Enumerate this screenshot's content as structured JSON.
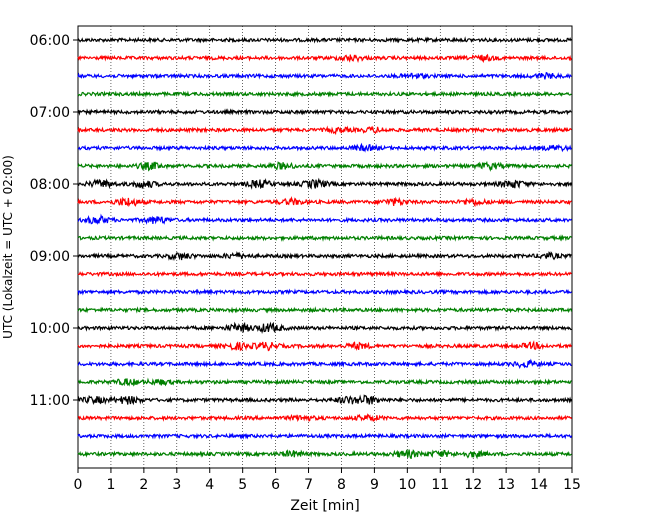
{
  "chart_data": {
    "type": "line",
    "title": "",
    "xlabel": "Zeit  [min]",
    "ylabel": "UTC (Lokalzeit = UTC + 02:00)",
    "xlim": [
      0,
      15
    ],
    "x_ticks": [
      "0",
      "1",
      "2",
      "3",
      "4",
      "5",
      "6",
      "7",
      "8",
      "9",
      "10",
      "11",
      "12",
      "13",
      "14",
      "15"
    ],
    "y_ticks": [
      "06:00",
      "07:00",
      "08:00",
      "09:00",
      "10:00",
      "11:00"
    ],
    "grid": "vertical dotted at each minute",
    "legend": "none",
    "trace_interval_minutes": 15,
    "trace_colors": [
      "#000000",
      "#ff0000",
      "#0000ff",
      "#008000"
    ],
    "traces": [
      {
        "start": "06:00",
        "color": "#000000",
        "events": []
      },
      {
        "start": "06:15",
        "color": "#ff0000",
        "events": [
          [
            8.3,
            1.6
          ],
          [
            12.3,
            1.4
          ]
        ]
      },
      {
        "start": "06:30",
        "color": "#0000ff",
        "events": [
          [
            10.2,
            1.3
          ],
          [
            14.2,
            1.3
          ]
        ]
      },
      {
        "start": "06:45",
        "color": "#008000",
        "events": []
      },
      {
        "start": "07:00",
        "color": "#000000",
        "events": []
      },
      {
        "start": "07:15",
        "color": "#ff0000",
        "events": [
          [
            7.9,
            1.3
          ],
          [
            9.0,
            1.3
          ]
        ]
      },
      {
        "start": "07:30",
        "color": "#0000ff",
        "events": [
          [
            8.7,
            1.5
          ],
          [
            14.5,
            1.3
          ]
        ]
      },
      {
        "start": "07:45",
        "color": "#008000",
        "events": [
          [
            2.2,
            2.0
          ],
          [
            6.2,
            1.8
          ],
          [
            12.5,
            1.8
          ]
        ]
      },
      {
        "start": "08:00",
        "color": "#000000",
        "events": [
          [
            0.7,
            2.2
          ],
          [
            2.0,
            2.0
          ],
          [
            5.5,
            2.2
          ],
          [
            7.2,
            2.4
          ],
          [
            13.2,
            2.2
          ]
        ]
      },
      {
        "start": "08:15",
        "color": "#ff0000",
        "events": [
          [
            1.5,
            2.4
          ],
          [
            6.5,
            1.6
          ],
          [
            9.6,
            1.8
          ],
          [
            12.0,
            1.6
          ]
        ]
      },
      {
        "start": "08:30",
        "color": "#0000ff",
        "events": [
          [
            0.6,
            2.2
          ],
          [
            2.4,
            2.0
          ]
        ]
      },
      {
        "start": "08:45",
        "color": "#008000",
        "events": []
      },
      {
        "start": "09:00",
        "color": "#000000",
        "events": [
          [
            3.1,
            1.8
          ],
          [
            4.8,
            1.4
          ],
          [
            14.3,
            1.4
          ]
        ]
      },
      {
        "start": "09:15",
        "color": "#ff0000",
        "events": []
      },
      {
        "start": "09:30",
        "color": "#0000ff",
        "events": []
      },
      {
        "start": "09:45",
        "color": "#008000",
        "events": []
      },
      {
        "start": "10:00",
        "color": "#000000",
        "events": [
          [
            4.9,
            2.4
          ],
          [
            5.8,
            2.6
          ]
        ]
      },
      {
        "start": "10:15",
        "color": "#ff0000",
        "events": [
          [
            4.8,
            2.0
          ],
          [
            5.7,
            2.2
          ],
          [
            8.5,
            1.6
          ],
          [
            13.8,
            1.6
          ]
        ]
      },
      {
        "start": "10:30",
        "color": "#0000ff",
        "events": [
          [
            13.6,
            1.8
          ]
        ]
      },
      {
        "start": "10:45",
        "color": "#008000",
        "events": [
          [
            1.5,
            1.6
          ],
          [
            2.5,
            1.4
          ]
        ]
      },
      {
        "start": "11:00",
        "color": "#000000",
        "events": [
          [
            0.5,
            1.8
          ],
          [
            1.5,
            2.2
          ],
          [
            8.8,
            2.4
          ],
          [
            8.2,
            1.8
          ]
        ]
      },
      {
        "start": "11:15",
        "color": "#ff0000",
        "events": [
          [
            6.8,
            1.4
          ],
          [
            8.8,
            1.6
          ]
        ]
      },
      {
        "start": "11:30",
        "color": "#0000ff",
        "events": []
      },
      {
        "start": "11:45",
        "color": "#008000",
        "events": [
          [
            6.5,
            1.6
          ],
          [
            10.0,
            2.2
          ],
          [
            11.0,
            1.6
          ],
          [
            12.0,
            1.6
          ]
        ]
      }
    ]
  }
}
